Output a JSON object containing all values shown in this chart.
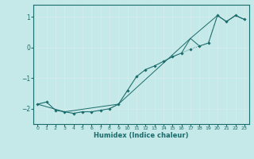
{
  "xlabel": "Humidex (Indice chaleur)",
  "xlim": [
    -0.5,
    23.5
  ],
  "ylim": [
    -2.5,
    1.4
  ],
  "yticks": [
    -2,
    -1,
    0,
    1
  ],
  "xticks": [
    0,
    1,
    2,
    3,
    4,
    5,
    6,
    7,
    8,
    9,
    10,
    11,
    12,
    13,
    14,
    15,
    16,
    17,
    18,
    19,
    20,
    21,
    22,
    23
  ],
  "bg_color": "#c5e8e8",
  "line_color": "#1a6b6b",
  "grid_color_major": "#d8ecec",
  "grid_color_minor": "#d8ecec",
  "series_dotted": {
    "x": [
      0,
      1,
      2,
      3,
      4,
      5,
      6,
      7,
      8,
      9,
      10,
      11,
      12,
      13,
      14,
      15,
      16,
      17,
      18,
      19,
      20,
      21,
      22,
      23
    ],
    "y": [
      -1.85,
      -1.78,
      -2.05,
      -2.1,
      -2.15,
      -2.1,
      -2.1,
      -2.05,
      -2.0,
      -1.85,
      -1.4,
      -0.95,
      -0.72,
      -0.6,
      -0.45,
      -0.3,
      -0.18,
      -0.05,
      0.05,
      0.15,
      1.05,
      0.85,
      1.05,
      0.92
    ]
  },
  "series_line1": {
    "x": [
      0,
      1,
      2,
      3,
      4,
      5,
      6,
      7,
      8,
      9,
      10,
      11,
      12,
      13,
      14,
      15,
      16,
      17,
      18,
      19,
      20,
      21,
      22,
      23
    ],
    "y": [
      -1.85,
      -1.78,
      -2.05,
      -2.1,
      -2.15,
      -2.1,
      -2.1,
      -2.05,
      -2.0,
      -1.85,
      -1.4,
      -0.95,
      -0.72,
      -0.6,
      -0.45,
      -0.3,
      -0.18,
      0.3,
      0.05,
      0.15,
      1.05,
      0.85,
      1.05,
      0.92
    ]
  },
  "series_line2": {
    "x": [
      0,
      3,
      9,
      17,
      20,
      21,
      22,
      23
    ],
    "y": [
      -1.85,
      -2.1,
      -1.85,
      0.3,
      1.05,
      0.85,
      1.05,
      0.92
    ]
  }
}
